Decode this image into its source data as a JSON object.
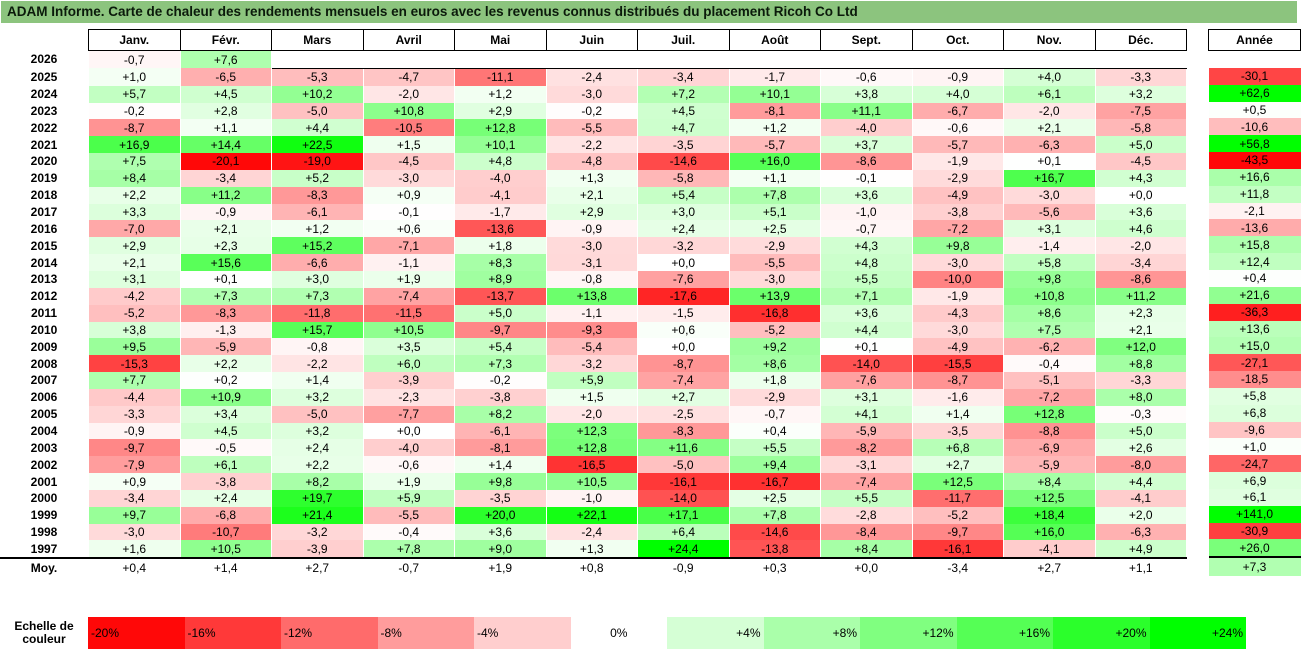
{
  "title": "ADAM Informe. Carte de chaleur des rendements mensuels en euros avec les revenus connus distribués du placement Ricoh Co Ltd",
  "chart_data": {
    "type": "heatmap",
    "months": [
      "Janv.",
      "Févr.",
      "Mars",
      "Avril",
      "Mai",
      "Juin",
      "Juil.",
      "Août",
      "Sept.",
      "Oct.",
      "Nov.",
      "Déc."
    ],
    "year_header": "Année",
    "avg_label": "Moy.",
    "rows": [
      {
        "year": "2026",
        "values": [
          "-0,7",
          "+7,6",
          "",
          "",
          "",
          "",
          "",
          "",
          "",
          "",
          "",
          ""
        ],
        "nums": [
          -0.7,
          7.6,
          null,
          null,
          null,
          null,
          null,
          null,
          null,
          null,
          null,
          null
        ],
        "total": "",
        "total_num": null
      },
      {
        "year": "2025",
        "values": [
          "+1,0",
          "-6,5",
          "-5,3",
          "-4,7",
          "-11,1",
          "-2,4",
          "-3,4",
          "-1,7",
          "-0,6",
          "-0,9",
          "+4,0",
          "-3,3"
        ],
        "nums": [
          1.0,
          -6.5,
          -5.3,
          -4.7,
          -11.1,
          -2.4,
          -3.4,
          -1.7,
          -0.6,
          -0.9,
          4.0,
          -3.3
        ],
        "total": "-30,1",
        "total_num": -30.1
      },
      {
        "year": "2024",
        "values": [
          "+5,7",
          "+4,5",
          "+10,2",
          "-2,0",
          "+1,2",
          "-3,0",
          "+7,2",
          "+10,1",
          "+3,8",
          "+4,0",
          "+6,1",
          "+3,2"
        ],
        "nums": [
          5.7,
          4.5,
          10.2,
          -2.0,
          1.2,
          -3.0,
          7.2,
          10.1,
          3.8,
          4.0,
          6.1,
          3.2
        ],
        "total": "+62,6",
        "total_num": 62.6
      },
      {
        "year": "2023",
        "values": [
          "-0,2",
          "+2,8",
          "-5,0",
          "+10,8",
          "+2,9",
          "-0,2",
          "+4,5",
          "-8,1",
          "+11,1",
          "-6,7",
          "-2,0",
          "-7,5"
        ],
        "nums": [
          -0.2,
          2.8,
          -5.0,
          10.8,
          2.9,
          -0.2,
          4.5,
          -8.1,
          11.1,
          -6.7,
          -2.0,
          -7.5
        ],
        "total": "+0,5",
        "total_num": 0.5
      },
      {
        "year": "2022",
        "values": [
          "-8,7",
          "+1,1",
          "+4,4",
          "-10,5",
          "+12,8",
          "-5,5",
          "+4,7",
          "+1,2",
          "-4,0",
          "-0,6",
          "+2,1",
          "-5,8"
        ],
        "nums": [
          -8.7,
          1.1,
          4.4,
          -10.5,
          12.8,
          -5.5,
          4.7,
          1.2,
          -4.0,
          -0.6,
          2.1,
          -5.8
        ],
        "total": "-10,6",
        "total_num": -10.6
      },
      {
        "year": "2021",
        "values": [
          "+16,9",
          "+14,4",
          "+22,5",
          "+1,5",
          "+10,1",
          "-2,2",
          "-3,5",
          "-5,7",
          "+3,7",
          "-5,7",
          "-6,3",
          "+5,0"
        ],
        "nums": [
          16.9,
          14.4,
          22.5,
          1.5,
          10.1,
          -2.2,
          -3.5,
          -5.7,
          3.7,
          -5.7,
          -6.3,
          5.0
        ],
        "total": "+56,8",
        "total_num": 56.8
      },
      {
        "year": "2020",
        "values": [
          "+7,5",
          "-20,1",
          "-19,0",
          "-4,5",
          "+4,8",
          "-4,8",
          "-14,6",
          "+16,0",
          "-8,6",
          "-1,9",
          "+0,1",
          "-4,5"
        ],
        "nums": [
          7.5,
          -20.1,
          -19.0,
          -4.5,
          4.8,
          -4.8,
          -14.6,
          16.0,
          -8.6,
          -1.9,
          0.1,
          -4.5
        ],
        "total": "-43,5",
        "total_num": -43.5
      },
      {
        "year": "2019",
        "values": [
          "+8,4",
          "-3,4",
          "+5,2",
          "-3,0",
          "-4,0",
          "+1,3",
          "-5,8",
          "+1,1",
          "-0,1",
          "-2,9",
          "+16,7",
          "+4,3"
        ],
        "nums": [
          8.4,
          -3.4,
          5.2,
          -3.0,
          -4.0,
          1.3,
          -5.8,
          1.1,
          -0.1,
          -2.9,
          16.7,
          4.3
        ],
        "total": "+16,6",
        "total_num": 16.6
      },
      {
        "year": "2018",
        "values": [
          "+2,2",
          "+11,2",
          "-8,3",
          "+0,9",
          "-4,1",
          "+2,1",
          "+5,4",
          "+7,8",
          "+3,6",
          "-4,9",
          "-3,0",
          "+0,0"
        ],
        "nums": [
          2.2,
          11.2,
          -8.3,
          0.9,
          -4.1,
          2.1,
          5.4,
          7.8,
          3.6,
          -4.9,
          -3.0,
          0.0
        ],
        "total": "+11,8",
        "total_num": 11.8
      },
      {
        "year": "2017",
        "values": [
          "+3,3",
          "-0,9",
          "-6,1",
          "-0,1",
          "-1,7",
          "+2,9",
          "+3,0",
          "+5,1",
          "-1,0",
          "-3,8",
          "-5,6",
          "+3,6"
        ],
        "nums": [
          3.3,
          -0.9,
          -6.1,
          -0.1,
          -1.7,
          2.9,
          3.0,
          5.1,
          -1.0,
          -3.8,
          -5.6,
          3.6
        ],
        "total": "-2,1",
        "total_num": -2.1
      },
      {
        "year": "2016",
        "values": [
          "-7,0",
          "+2,1",
          "+1,2",
          "+0,6",
          "-13,6",
          "-0,9",
          "+2,4",
          "+2,5",
          "-0,7",
          "-7,2",
          "+3,1",
          "+4,6"
        ],
        "nums": [
          -7.0,
          2.1,
          1.2,
          0.6,
          -13.6,
          -0.9,
          2.4,
          2.5,
          -0.7,
          -7.2,
          3.1,
          4.6
        ],
        "total": "-13,6",
        "total_num": -13.6
      },
      {
        "year": "2015",
        "values": [
          "+2,9",
          "+2,3",
          "+15,2",
          "-7,1",
          "+1,8",
          "-3,0",
          "-3,2",
          "-2,9",
          "+4,3",
          "+9,8",
          "-1,4",
          "-2,0"
        ],
        "nums": [
          2.9,
          2.3,
          15.2,
          -7.1,
          1.8,
          -3.0,
          -3.2,
          -2.9,
          4.3,
          9.8,
          -1.4,
          -2.0
        ],
        "total": "+15,8",
        "total_num": 15.8
      },
      {
        "year": "2014",
        "values": [
          "+2,1",
          "+15,6",
          "-6,6",
          "-1,1",
          "+8,3",
          "-3,1",
          "+0,0",
          "-5,5",
          "+4,8",
          "-3,0",
          "+5,8",
          "-3,4"
        ],
        "nums": [
          2.1,
          15.6,
          -6.6,
          -1.1,
          8.3,
          -3.1,
          0.0,
          -5.5,
          4.8,
          -3.0,
          5.8,
          -3.4
        ],
        "total": "+12,4",
        "total_num": 12.4
      },
      {
        "year": "2013",
        "values": [
          "+3,1",
          "+0,1",
          "+3,0",
          "+1,9",
          "+8,9",
          "-0,8",
          "-7,6",
          "-3,0",
          "+5,5",
          "-10,0",
          "+9,8",
          "-8,6"
        ],
        "nums": [
          3.1,
          0.1,
          3.0,
          1.9,
          8.9,
          -0.8,
          -7.6,
          -3.0,
          5.5,
          -10.0,
          9.8,
          -8.6
        ],
        "total": "+0,4",
        "total_num": 0.4
      },
      {
        "year": "2012",
        "values": [
          "-4,2",
          "+7,3",
          "+7,3",
          "-7,4",
          "-13,7",
          "+13,8",
          "-17,6",
          "+13,9",
          "+7,1",
          "-1,9",
          "+10,8",
          "+11,2"
        ],
        "nums": [
          -4.2,
          7.3,
          7.3,
          -7.4,
          -13.7,
          13.8,
          -17.6,
          13.9,
          7.1,
          -1.9,
          10.8,
          11.2
        ],
        "total": "+21,6",
        "total_num": 21.6
      },
      {
        "year": "2011",
        "values": [
          "-5,2",
          "-8,3",
          "-11,8",
          "-11,5",
          "+5,0",
          "-1,1",
          "-1,5",
          "-16,8",
          "+3,6",
          "-4,3",
          "+8,6",
          "+2,3"
        ],
        "nums": [
          -5.2,
          -8.3,
          -11.8,
          -11.5,
          5.0,
          -1.1,
          -1.5,
          -16.8,
          3.6,
          -4.3,
          8.6,
          2.3
        ],
        "total": "-36,3",
        "total_num": -36.3
      },
      {
        "year": "2010",
        "values": [
          "+3,8",
          "-1,3",
          "+15,7",
          "+10,5",
          "-9,7",
          "-9,3",
          "+0,6",
          "-5,2",
          "+4,4",
          "-3,0",
          "+7,5",
          "+2,1"
        ],
        "nums": [
          3.8,
          -1.3,
          15.7,
          10.5,
          -9.7,
          -9.3,
          0.6,
          -5.2,
          4.4,
          -3.0,
          7.5,
          2.1
        ],
        "total": "+13,6",
        "total_num": 13.6
      },
      {
        "year": "2009",
        "values": [
          "+9,5",
          "-5,9",
          "-0,8",
          "+3,5",
          "+5,4",
          "-5,4",
          "+0,0",
          "+9,2",
          "+0,1",
          "-4,9",
          "-6,2",
          "+12,0"
        ],
        "nums": [
          9.5,
          -5.9,
          -0.8,
          3.5,
          5.4,
          -5.4,
          0.0,
          9.2,
          0.1,
          -4.9,
          -6.2,
          12.0
        ],
        "total": "+15,0",
        "total_num": 15.0
      },
      {
        "year": "2008",
        "values": [
          "-15,3",
          "+2,2",
          "-2,2",
          "+6,0",
          "+7,3",
          "-3,2",
          "-8,7",
          "+8,6",
          "-14,0",
          "-15,5",
          "-0,4",
          "+8,8"
        ],
        "nums": [
          -15.3,
          2.2,
          -2.2,
          6.0,
          7.3,
          -3.2,
          -8.7,
          8.6,
          -14.0,
          -15.5,
          -0.4,
          8.8
        ],
        "total": "-27,1",
        "total_num": -27.1
      },
      {
        "year": "2007",
        "values": [
          "+7,7",
          "+0,2",
          "+1,4",
          "-3,9",
          "-0,2",
          "+5,9",
          "-7,4",
          "+1,8",
          "-7,6",
          "-8,7",
          "-5,1",
          "-3,3"
        ],
        "nums": [
          7.7,
          0.2,
          1.4,
          -3.9,
          -0.2,
          5.9,
          -7.4,
          1.8,
          -7.6,
          -8.7,
          -5.1,
          -3.3
        ],
        "total": "-18,5",
        "total_num": -18.5
      },
      {
        "year": "2006",
        "values": [
          "-4,4",
          "+10,9",
          "+3,2",
          "-2,3",
          "-3,8",
          "+1,5",
          "+2,7",
          "-2,9",
          "+3,1",
          "-1,6",
          "-7,2",
          "+8,0"
        ],
        "nums": [
          -4.4,
          10.9,
          3.2,
          -2.3,
          -3.8,
          1.5,
          2.7,
          -2.9,
          3.1,
          -1.6,
          -7.2,
          8.0
        ],
        "total": "+5,8",
        "total_num": 5.8
      },
      {
        "year": "2005",
        "values": [
          "-3,3",
          "+3,4",
          "-5,0",
          "-7,7",
          "+8,2",
          "-2,0",
          "-2,5",
          "-0,7",
          "+4,1",
          "+1,4",
          "+12,8",
          "-0,3"
        ],
        "nums": [
          -3.3,
          3.4,
          -5.0,
          -7.7,
          8.2,
          -2.0,
          -2.5,
          -0.7,
          4.1,
          1.4,
          12.8,
          -0.3
        ],
        "total": "+6,8",
        "total_num": 6.8
      },
      {
        "year": "2004",
        "values": [
          "-0,9",
          "+4,5",
          "+3,2",
          "+0,0",
          "-6,1",
          "+12,3",
          "-8,3",
          "+0,4",
          "-5,9",
          "-3,5",
          "-8,8",
          "+5,0"
        ],
        "nums": [
          -0.9,
          4.5,
          3.2,
          0.0,
          -6.1,
          12.3,
          -8.3,
          0.4,
          -5.9,
          -3.5,
          -8.8,
          5.0
        ],
        "total": "-9,6",
        "total_num": -9.6
      },
      {
        "year": "2003",
        "values": [
          "-9,7",
          "-0,5",
          "+2,4",
          "-4,0",
          "-8,1",
          "+12,8",
          "+11,6",
          "+5,5",
          "-8,2",
          "+6,8",
          "-6,9",
          "+2,6"
        ],
        "nums": [
          -9.7,
          -0.5,
          2.4,
          -4.0,
          -8.1,
          12.8,
          11.6,
          5.5,
          -8.2,
          6.8,
          -6.9,
          2.6
        ],
        "total": "+1,0",
        "total_num": 1.0
      },
      {
        "year": "2002",
        "values": [
          "-7,9",
          "+6,1",
          "+2,2",
          "-0,6",
          "+1,4",
          "-16,5",
          "-5,0",
          "+9,4",
          "-3,1",
          "+2,7",
          "-5,9",
          "-8,0"
        ],
        "nums": [
          -7.9,
          6.1,
          2.2,
          -0.6,
          1.4,
          -16.5,
          -5.0,
          9.4,
          -3.1,
          2.7,
          -5.9,
          -8.0
        ],
        "total": "-24,7",
        "total_num": -24.7
      },
      {
        "year": "2001",
        "values": [
          "+0,9",
          "-3,8",
          "+8,2",
          "+1,9",
          "+9,8",
          "+10,5",
          "-16,1",
          "-16,7",
          "-7,4",
          "+12,5",
          "+8,4",
          "+4,4"
        ],
        "nums": [
          0.9,
          -3.8,
          8.2,
          1.9,
          9.8,
          10.5,
          -16.1,
          -16.7,
          -7.4,
          12.5,
          8.4,
          4.4
        ],
        "total": "+6,9",
        "total_num": 6.9
      },
      {
        "year": "2000",
        "values": [
          "-3,4",
          "+2,4",
          "+19,7",
          "+5,9",
          "-3,5",
          "-1,0",
          "-14,0",
          "+2,5",
          "+5,5",
          "-11,7",
          "+12,5",
          "-4,1"
        ],
        "nums": [
          -3.4,
          2.4,
          19.7,
          5.9,
          -3.5,
          -1.0,
          -14.0,
          2.5,
          5.5,
          -11.7,
          12.5,
          -4.1
        ],
        "total": "+6,1",
        "total_num": 6.1
      },
      {
        "year": "1999",
        "values": [
          "+9,7",
          "-6,8",
          "+21,4",
          "-5,5",
          "+20,0",
          "+22,1",
          "+17,1",
          "+7,8",
          "-2,8",
          "-5,2",
          "+18,4",
          "+2,0"
        ],
        "nums": [
          9.7,
          -6.8,
          21.4,
          -5.5,
          20.0,
          22.1,
          17.1,
          7.8,
          -2.8,
          -5.2,
          18.4,
          2.0
        ],
        "total": "+141,0",
        "total_num": 141.0
      },
      {
        "year": "1998",
        "values": [
          "-3,0",
          "-10,7",
          "-3,2",
          "-0,4",
          "+3,6",
          "-2,4",
          "+6,4",
          "-14,6",
          "-8,4",
          "-9,7",
          "+16,0",
          "-6,3"
        ],
        "nums": [
          -3.0,
          -10.7,
          -3.2,
          -0.4,
          3.6,
          -2.4,
          6.4,
          -14.6,
          -8.4,
          -9.7,
          16.0,
          -6.3
        ],
        "total": "-30,9",
        "total_num": -30.9
      },
      {
        "year": "1997",
        "values": [
          "+1,6",
          "+10,5",
          "-3,9",
          "+7,8",
          "+9,0",
          "+1,3",
          "+24,4",
          "-13,8",
          "+8,4",
          "-16,1",
          "-4,1",
          "+4,9"
        ],
        "nums": [
          1.6,
          10.5,
          -3.9,
          7.8,
          9.0,
          1.3,
          24.4,
          -13.8,
          8.4,
          -16.1,
          -4.1,
          4.9
        ],
        "total": "+26,0",
        "total_num": 26.0
      }
    ],
    "averages": [
      "+0,4",
      "+1,4",
      "+2,7",
      "-0,7",
      "+1,9",
      "+0,8",
      "-0,9",
      "+0,3",
      "+0,0",
      "-3,4",
      "+2,7",
      "+1,1"
    ],
    "average_nums": [
      0.4,
      1.4,
      2.7,
      -0.7,
      1.9,
      0.8,
      -0.9,
      0.3,
      0.0,
      -3.4,
      2.7,
      1.1
    ],
    "average_total": "+7,3",
    "average_total_num": 7.3,
    "scale_label_1": "Echelle de",
    "scale_label_2": "couleur",
    "scale": [
      "-20%",
      "-16%",
      "-12%",
      "-8%",
      "-4%",
      "0%",
      "+4%",
      "+8%",
      "+12%",
      "+16%",
      "+20%",
      "+24%"
    ],
    "scale_nums": [
      -20,
      -16,
      -12,
      -8,
      -4,
      0,
      4,
      8,
      12,
      16,
      20,
      24
    ],
    "colors": {
      "negative": "#ff0000",
      "positive": "#00ff00",
      "neutral": "#ffffff",
      "title_bg": "#8cc47e"
    }
  }
}
